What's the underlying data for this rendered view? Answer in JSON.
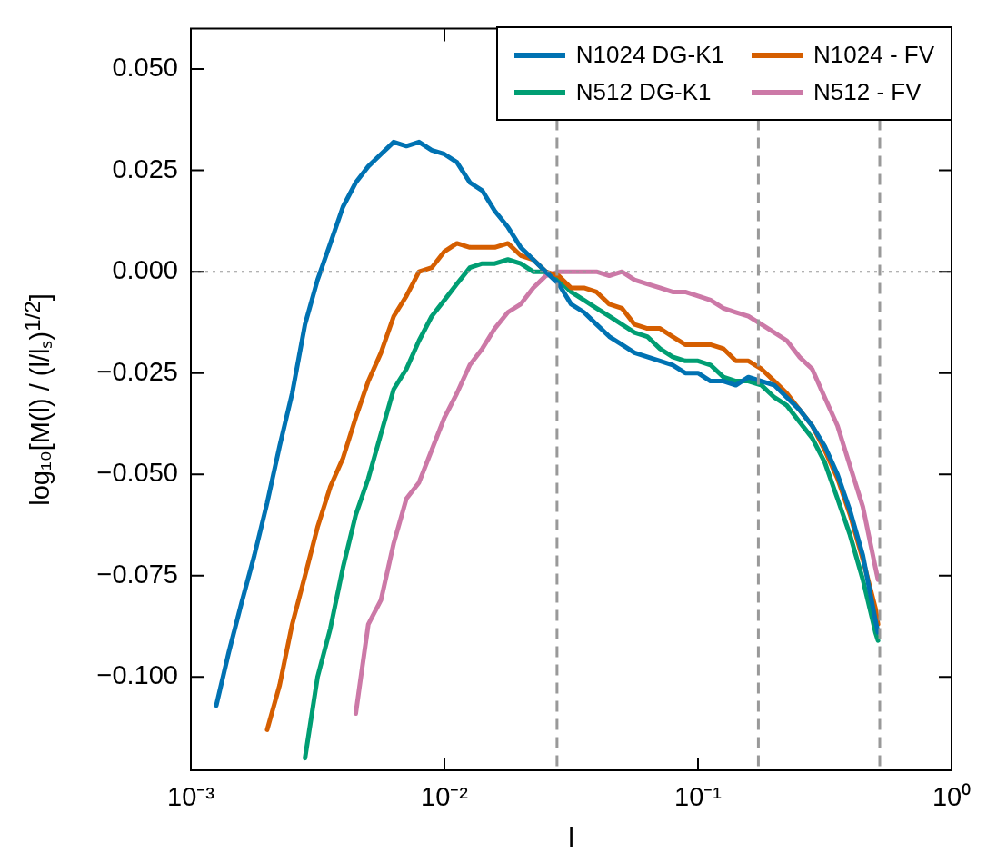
{
  "chart_data": {
    "type": "line",
    "xlabel": "l",
    "ylabel": "log₁₀[M(l) / (l/lₛ)$^{1/2}$]",
    "x": [
      0.00126,
      0.00141,
      0.00158,
      0.00178,
      0.002,
      0.00224,
      0.00251,
      0.00282,
      0.00316,
      0.00355,
      0.00398,
      0.00447,
      0.00501,
      0.00562,
      0.00631,
      0.00708,
      0.00794,
      0.00891,
      0.01,
      0.0112,
      0.0126,
      0.0141,
      0.0158,
      0.0178,
      0.02,
      0.0224,
      0.0251,
      0.0282,
      0.0316,
      0.0355,
      0.0398,
      0.0447,
      0.0501,
      0.0562,
      0.0631,
      0.0708,
      0.0794,
      0.0891,
      0.1,
      0.112,
      0.126,
      0.141,
      0.158,
      0.178,
      0.2,
      0.224,
      0.251,
      0.282,
      0.316,
      0.355,
      0.398,
      0.447,
      0.501,
      0.513
    ],
    "series": [
      {
        "name": "N1024 DG-K1",
        "color": "#0072b2",
        "values": [
          -0.107,
          -0.094,
          -0.082,
          -0.07,
          -0.057,
          -0.043,
          -0.03,
          -0.013,
          -0.002,
          0.007,
          0.016,
          0.022,
          0.026,
          0.029,
          0.032,
          0.031,
          0.032,
          0.03,
          0.029,
          0.027,
          0.022,
          0.02,
          0.015,
          0.011,
          0.006,
          0.003,
          0.0,
          -0.003,
          -0.008,
          -0.01,
          -0.013,
          -0.016,
          -0.018,
          -0.02,
          -0.021,
          -0.022,
          -0.023,
          -0.025,
          -0.025,
          -0.027,
          -0.027,
          -0.028,
          -0.026,
          -0.027,
          -0.028,
          -0.031,
          -0.034,
          -0.038,
          -0.043,
          -0.05,
          -0.059,
          -0.07,
          -0.086,
          -0.089
        ]
      },
      {
        "name": "N1024 - FV",
        "color": "#d55e00",
        "values": [
          null,
          null,
          null,
          null,
          -0.113,
          -0.102,
          -0.087,
          -0.075,
          -0.063,
          -0.053,
          -0.046,
          -0.036,
          -0.027,
          -0.02,
          -0.011,
          -0.006,
          0.0,
          0.001,
          0.005,
          0.007,
          0.006,
          0.006,
          0.006,
          0.007,
          0.004,
          0.003,
          0.0,
          -0.001,
          -0.004,
          -0.004,
          -0.005,
          -0.008,
          -0.009,
          -0.013,
          -0.014,
          -0.014,
          -0.016,
          -0.018,
          -0.018,
          -0.018,
          -0.019,
          -0.022,
          -0.022,
          -0.024,
          -0.027,
          -0.03,
          -0.034,
          -0.038,
          -0.044,
          -0.051,
          -0.06,
          -0.071,
          -0.083,
          -0.087
        ]
      },
      {
        "name": "N512 DG-K1",
        "color": "#009e73",
        "values": [
          null,
          null,
          null,
          null,
          null,
          null,
          null,
          -0.12,
          -0.1,
          -0.088,
          -0.073,
          -0.06,
          -0.051,
          -0.04,
          -0.029,
          -0.024,
          -0.017,
          -0.011,
          -0.007,
          -0.003,
          0.001,
          0.002,
          0.002,
          0.003,
          0.002,
          0.0,
          0.0,
          -0.002,
          -0.005,
          -0.007,
          -0.009,
          -0.011,
          -0.013,
          -0.015,
          -0.016,
          -0.019,
          -0.021,
          -0.022,
          -0.022,
          -0.023,
          -0.026,
          -0.027,
          -0.027,
          -0.028,
          -0.031,
          -0.033,
          -0.037,
          -0.041,
          -0.047,
          -0.056,
          -0.065,
          -0.076,
          -0.089,
          -0.091
        ]
      },
      {
        "name": "N512 - FV",
        "color": "#cc79a7",
        "values": [
          null,
          null,
          null,
          null,
          null,
          null,
          null,
          null,
          null,
          null,
          null,
          -0.109,
          -0.087,
          -0.081,
          -0.067,
          -0.056,
          -0.052,
          -0.044,
          -0.036,
          -0.03,
          -0.023,
          -0.019,
          -0.014,
          -0.01,
          -0.008,
          -0.004,
          -0.001,
          0.0,
          0.0,
          0.0,
          0.0,
          -0.001,
          0.0,
          -0.002,
          -0.003,
          -0.004,
          -0.005,
          -0.005,
          -0.006,
          -0.007,
          -0.009,
          -0.01,
          -0.011,
          -0.013,
          -0.015,
          -0.017,
          -0.021,
          -0.024,
          -0.031,
          -0.038,
          -0.048,
          -0.058,
          -0.073,
          -0.076
        ]
      }
    ],
    "log": "x",
    "xlim": [
      0.001,
      1
    ],
    "xticks": [
      {
        "value": 0.001,
        "label": "10⁻³"
      },
      {
        "value": 0.01,
        "label": "10⁻²"
      },
      {
        "value": 0.1,
        "label": "10⁻¹"
      },
      {
        "value": 1,
        "label": "10⁰"
      }
    ],
    "ylim": [
      -0.123,
      0.06
    ],
    "yticks": [
      {
        "value": -0.1,
        "label": "−0.100"
      },
      {
        "value": -0.075,
        "label": "−0.075"
      },
      {
        "value": -0.05,
        "label": "−0.050"
      },
      {
        "value": -0.025,
        "label": "−0.025"
      },
      {
        "value": 0,
        "label": "0.000"
      },
      {
        "value": 0.025,
        "label": "0.025"
      },
      {
        "value": 0.05,
        "label": "0.050"
      }
    ],
    "ref_lines": [
      {
        "axis": "y",
        "value": 0,
        "color": "#999999",
        "line_style": "dotted"
      },
      {
        "axis": "x",
        "value": 0.0278,
        "color": "#999999",
        "line_style": "dashed"
      },
      {
        "axis": "x",
        "value": 0.173,
        "color": "#999999",
        "line_style": "dashed"
      },
      {
        "axis": "x",
        "value": 0.521,
        "color": "#999999",
        "line_style": "dashed"
      }
    ],
    "grid": false,
    "legend": "top right",
    "marker": "none",
    "line_style": "solid"
  }
}
